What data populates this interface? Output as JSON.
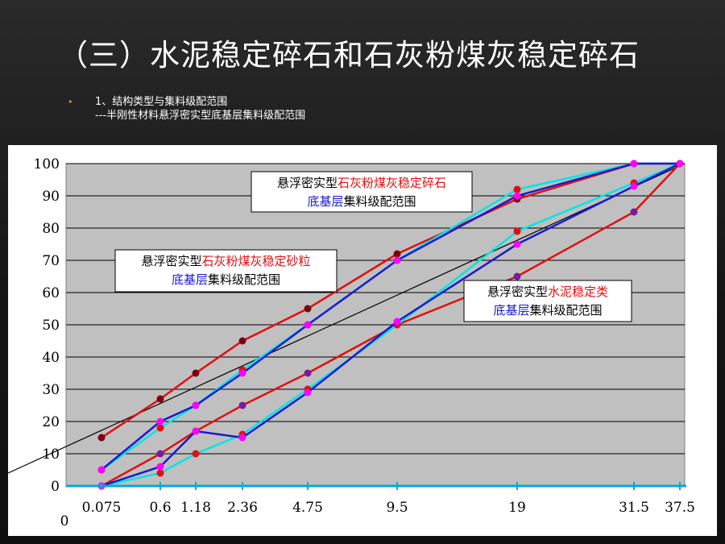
{
  "slide": {
    "title": "（三）水泥稳定碎石和石灰粉煤灰稳定碎石",
    "bullet_marker": "•",
    "bullet_line1": "1、结构类型与集料级配范围",
    "bullet_line2": "---半刚性材料悬浮密实型底基层集料级配范围"
  },
  "chart_data": {
    "type": "line",
    "xlabel": "",
    "ylabel": "",
    "x_categories": [
      "0.075",
      "0.6",
      "1.18",
      "2.36",
      "4.75",
      "9.5",
      "19",
      "31.5",
      "37.5"
    ],
    "x_origin_label": "0",
    "y_ticks": [
      0,
      10,
      20,
      30,
      40,
      50,
      60,
      70,
      80,
      90,
      100
    ],
    "ylim": [
      0,
      100
    ],
    "grid": true,
    "series": [
      {
        "color": "#e01010",
        "marker": "#7a0010",
        "x": [
          "0.075",
          "0.6",
          "1.18",
          "2.36",
          "4.75",
          "9.5",
          "19",
          "31.5",
          "37.5"
        ],
        "y": [
          15,
          27,
          35,
          45,
          55,
          72,
          89,
          100,
          100
        ]
      },
      {
        "color": "#00e5e5",
        "marker": "#e01010",
        "x": [
          "0.075",
          "0.6",
          "1.18",
          "2.36",
          "4.75",
          "9.5",
          "19",
          "31.5",
          "37.5"
        ],
        "y": [
          5,
          18,
          25,
          36,
          50,
          70,
          92,
          100,
          100
        ]
      },
      {
        "color": "#1a1ad0",
        "marker": "#ff00ff",
        "x": [
          "0.075",
          "0.6",
          "1.18",
          "2.36",
          "4.75",
          "9.5",
          "19",
          "31.5",
          "37.5"
        ],
        "y": [
          5,
          20,
          25,
          35,
          50,
          70,
          90,
          100,
          100
        ]
      },
      {
        "color": "#e01010",
        "marker": "#7a1aa0",
        "x": [
          "0.075",
          "0.6",
          "1.18",
          "2.36",
          "4.75",
          "9.5",
          "19",
          "31.5",
          "37.5"
        ],
        "y": [
          0,
          10,
          17,
          25,
          35,
          50,
          65,
          85,
          100
        ]
      },
      {
        "color": "#00e5e5",
        "marker": "#e01010",
        "x": [
          "0.075",
          "0.6",
          "1.18",
          "2.36",
          "4.75",
          "9.5",
          "19",
          "31.5",
          "37.5"
        ],
        "y": [
          0,
          4,
          10,
          16,
          30,
          50,
          79,
          94,
          100
        ]
      },
      {
        "color": "#1a1ad0",
        "marker": "#ff00ff",
        "x": [
          "0.075",
          "0.6",
          "1.18",
          "2.36",
          "4.75",
          "9.5",
          "19",
          "31.5",
          "37.5"
        ],
        "y": [
          0,
          6,
          17,
          15,
          29,
          51,
          75,
          93,
          100
        ]
      }
    ],
    "reference_line": {
      "color": "#000000",
      "y_at_left": 4,
      "y_at_right": 100
    },
    "baseline": {
      "color": "#00aadd"
    },
    "annotations": [
      {
        "parts": [
          {
            "t": "悬浮密实型",
            "c": "#000000"
          },
          {
            "t": "石灰粉煤灰稳定碎石",
            "c": "#e01010"
          }
        ],
        "parts2": [
          {
            "t": "底基层",
            "c": "#1a1ad0"
          },
          {
            "t": "集料级配范围",
            "c": "#000000"
          }
        ]
      },
      {
        "parts": [
          {
            "t": "悬浮密实型",
            "c": "#000000"
          },
          {
            "t": "石灰粉煤灰稳定砂粒",
            "c": "#e01010"
          }
        ],
        "parts2": [
          {
            "t": "底基层",
            "c": "#1a1ad0"
          },
          {
            "t": "集料级配范围",
            "c": "#000000"
          }
        ]
      },
      {
        "parts": [
          {
            "t": "悬浮密实型",
            "c": "#000000"
          },
          {
            "t": "水泥稳定类",
            "c": "#e01010"
          }
        ],
        "parts2": [
          {
            "t": "底基层",
            "c": "#1a1ad0"
          },
          {
            "t": "集料级配范围",
            "c": "#000000"
          }
        ]
      }
    ]
  }
}
